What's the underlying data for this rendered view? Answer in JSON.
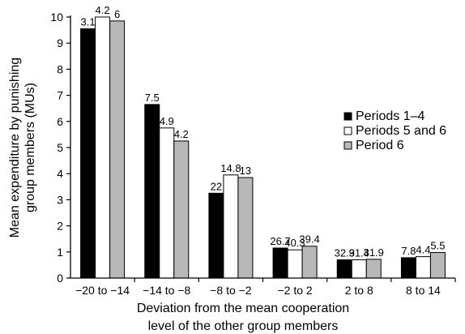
{
  "chart_data": {
    "type": "bar",
    "title": "",
    "xlabel_lines": [
      "Deviation from the mean cooperation",
      "level of the other group members"
    ],
    "ylabel_lines": [
      "Mean expenditure by punishing",
      "group members (MUs)"
    ],
    "ylim": [
      0,
      10
    ],
    "yticks": [
      "0",
      "1",
      "2",
      "3",
      "4",
      "5",
      "6",
      "7",
      "8",
      "9",
      "10"
    ],
    "categories": [
      "−20 to −14",
      "−14 to −8",
      "−8 to −2",
      "−2 to 2",
      "2 to 8",
      "8 to 14"
    ],
    "series": [
      {
        "name": "Periods 1–4",
        "color": "#000000",
        "values": [
          9.55,
          6.65,
          3.25,
          1.15,
          0.7,
          0.78
        ],
        "labels": [
          "3.1",
          "7.5",
          "22",
          "26.7",
          "32.9",
          "7.8"
        ]
      },
      {
        "name": "Periods 5 and 6",
        "color": "#ffffff",
        "values": [
          10.0,
          5.75,
          3.95,
          1.08,
          0.7,
          0.82
        ],
        "labels": [
          "4.2",
          "4.9",
          "14.8",
          "40.3",
          "31.4",
          "4.4"
        ]
      },
      {
        "name": "Period 6",
        "color": "#b8b8b8",
        "values": [
          9.85,
          5.25,
          3.85,
          1.22,
          0.72,
          0.98
        ],
        "labels": [
          "6",
          "4.2",
          "13",
          "39.4",
          "31.9",
          "5.5"
        ]
      }
    ],
    "legend_position": "right"
  }
}
